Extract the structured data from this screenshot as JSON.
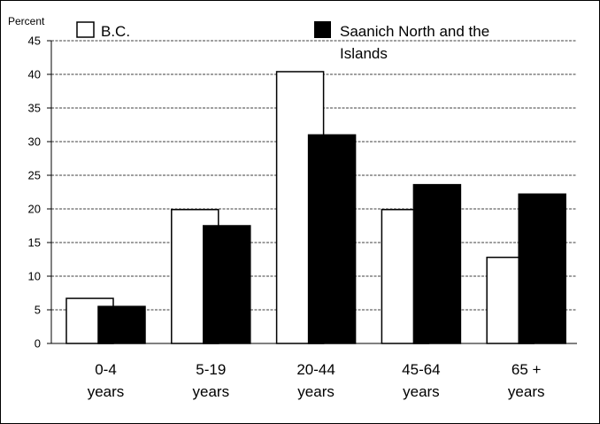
{
  "chart_data": {
    "type": "bar",
    "ylabel": "Percent",
    "ylim": [
      0,
      45
    ],
    "yticks": [
      0,
      5,
      10,
      15,
      20,
      25,
      30,
      35,
      40,
      45
    ],
    "grid": true,
    "legend_position": "top",
    "categories": [
      [
        "0-4",
        "years"
      ],
      [
        "5-19",
        "years"
      ],
      [
        "20-44",
        "years"
      ],
      [
        "45-64",
        "years"
      ],
      [
        "65 +",
        "years"
      ]
    ],
    "series": [
      {
        "name": "B.C.",
        "color": "#ffffff",
        "values": [
          6.7,
          19.9,
          40.4,
          19.9,
          12.8
        ]
      },
      {
        "name_lines": [
          "Saanich North and the",
          "Islands"
        ],
        "color": "#000000",
        "values": [
          5.5,
          17.5,
          31.0,
          23.6,
          22.2
        ]
      }
    ]
  }
}
